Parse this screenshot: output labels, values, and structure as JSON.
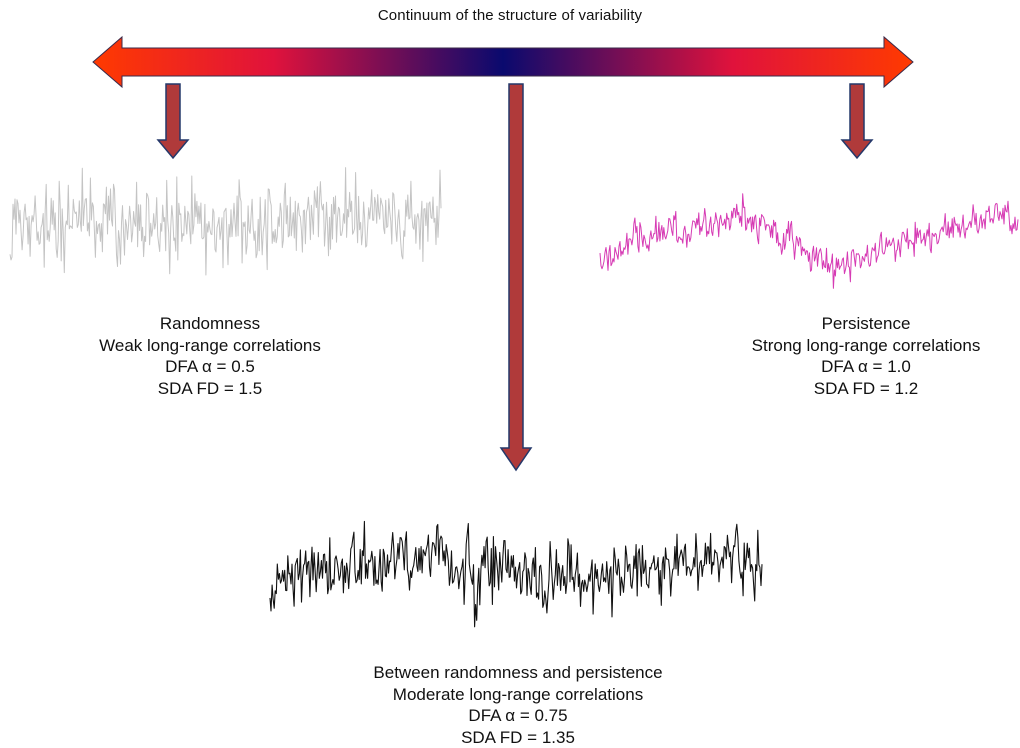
{
  "title": "Continuum of the structure of variability",
  "colors": {
    "arrow_end": "#ff3a00",
    "arrow_mid": "#e0123c",
    "arrow_center": "#0a0a6e",
    "down_arrow_fill": "#b03a3a",
    "down_arrow_stroke": "#24386a",
    "random_series": "#c4c4c4",
    "persistent_series": "#d63bb4",
    "between_series": "#111111"
  },
  "random": {
    "heading": "Randomness",
    "correlation": "Weak long-range correlations",
    "dfa": "DFA α = 0.5",
    "sda": "SDA FD = 1.5"
  },
  "persistent": {
    "heading": "Persistence",
    "correlation": "Strong long-range correlations",
    "dfa": "DFA α = 1.0",
    "sda": "SDA FD = 1.2"
  },
  "between": {
    "heading": "Between randomness and persistence",
    "correlation": "Moderate long-range correlations",
    "dfa": "DFA α = 0.75",
    "sda": "SDA FD = 1.35"
  }
}
